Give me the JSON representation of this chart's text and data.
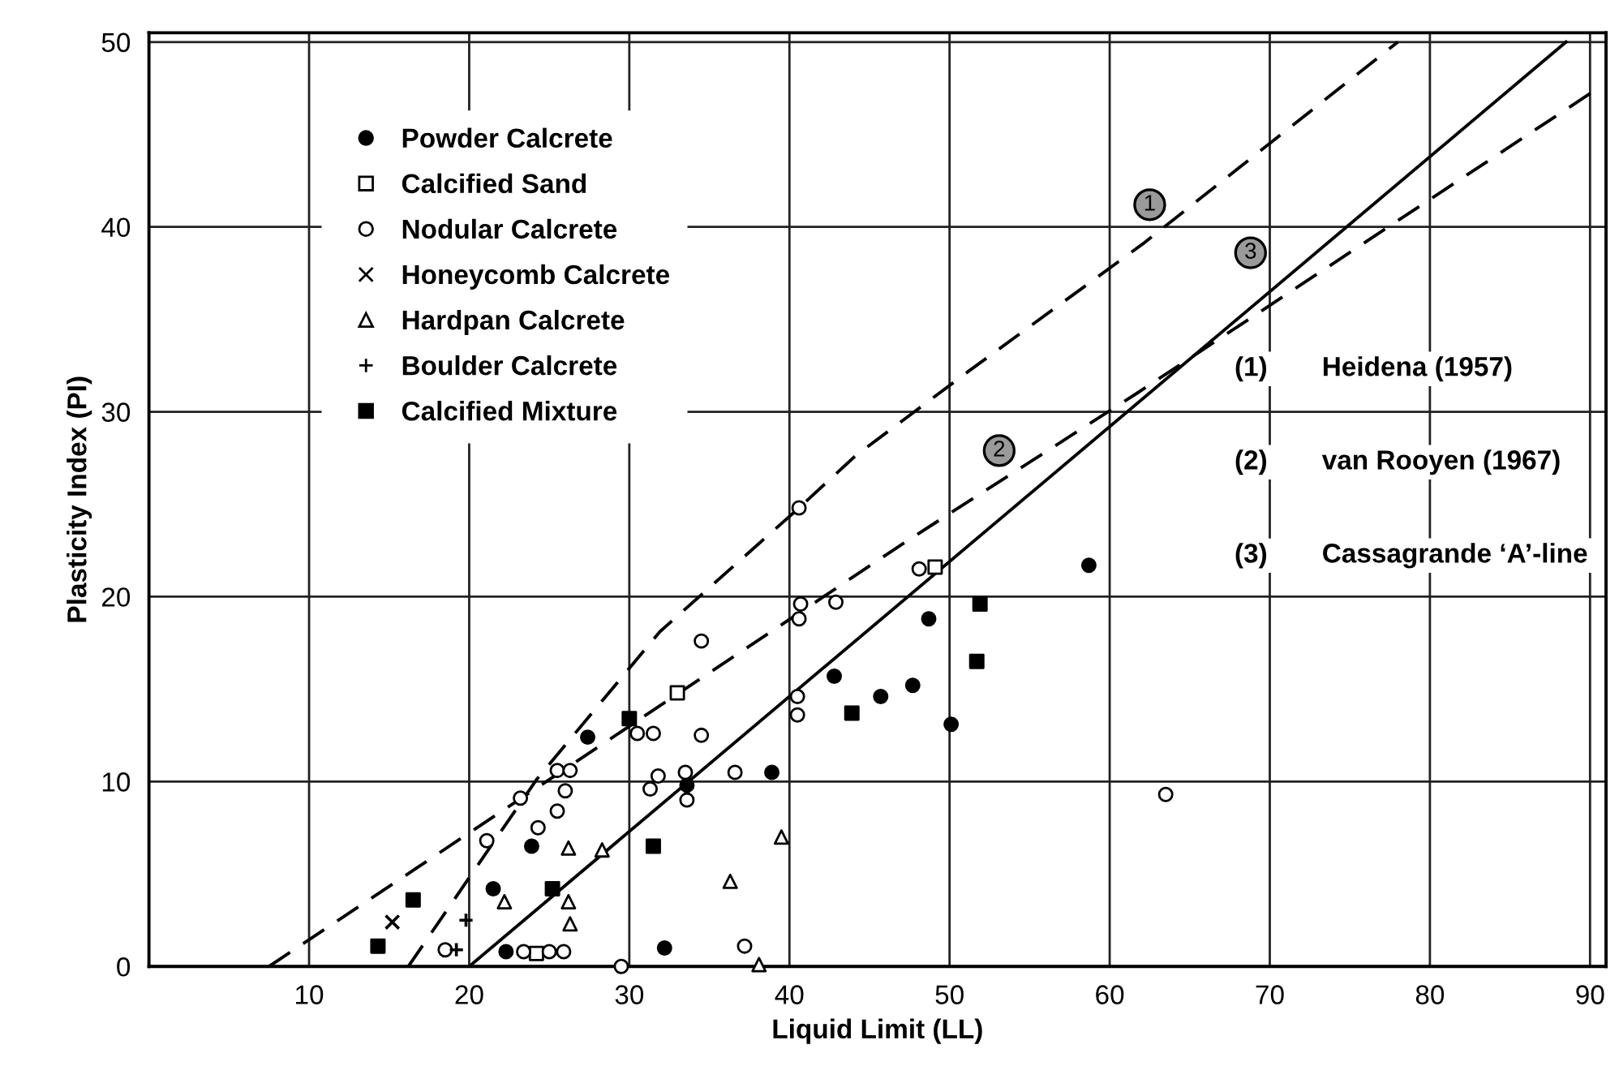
{
  "chart_data": {
    "type": "scatter",
    "xlabel": "Liquid Limit (LL)",
    "ylabel": "Plasticity Index (PI)",
    "xlim": [
      0,
      91
    ],
    "ylim": [
      0,
      50.5
    ],
    "xticks": [
      10,
      20,
      30,
      40,
      50,
      60,
      70,
      80,
      90
    ],
    "yticks": [
      0,
      10,
      20,
      30,
      40,
      50
    ],
    "grid": true,
    "legend": "top left",
    "series": [
      {
        "name": "Powder Calcrete",
        "color": "#000000",
        "marker": "circle",
        "x": [
          27.4,
          23.9,
          21.5,
          22.3,
          38.9,
          33.6,
          32.2,
          42.8,
          45.7,
          47.7,
          48.7,
          50.1,
          58.7
        ],
        "values": [
          12.4,
          6.5,
          4.2,
          0.8,
          10.5,
          9.8,
          1.0,
          15.7,
          14.6,
          15.2,
          18.8,
          13.1,
          21.7
        ]
      },
      {
        "name": "Calcified Sand",
        "color": "#000000",
        "marker": "square-open",
        "x": [
          24.2,
          33.0,
          49.1
        ],
        "values": [
          0.7,
          14.8,
          21.6
        ]
      },
      {
        "name": "Nodular Calcrete",
        "color": "#000000",
        "marker": "circle-open",
        "x": [
          21.1,
          23.2,
          25.5,
          26.3,
          26.0,
          25.5,
          24.3,
          30.5,
          31.3,
          18.5,
          23.4,
          25.0,
          25.9,
          29.5,
          40.6,
          40.7,
          40.6,
          42.9,
          48.1,
          34.5,
          31.5,
          34.5,
          40.5,
          40.5,
          31.8,
          33.5,
          36.6,
          33.6,
          37.2,
          63.5
        ],
        "values": [
          6.8,
          9.1,
          10.6,
          10.6,
          9.5,
          8.4,
          7.5,
          12.6,
          9.6,
          0.9,
          0.8,
          0.8,
          0.8,
          0.0,
          24.8,
          19.6,
          18.8,
          19.7,
          21.5,
          17.6,
          12.6,
          12.5,
          14.6,
          13.6,
          10.3,
          10.5,
          10.5,
          9.0,
          1.1,
          9.3
        ]
      },
      {
        "name": "Honeycomb Calcrete",
        "color": "#000000",
        "marker": "cross",
        "x": [
          15.2
        ],
        "values": [
          2.4
        ]
      },
      {
        "name": "Hardpan Calcrete",
        "color": "#000000",
        "marker": "triangle-open",
        "x": [
          26.2,
          28.3,
          22.2,
          26.2,
          26.3,
          39.5,
          36.3,
          38.1
        ],
        "values": [
          6.4,
          6.3,
          3.5,
          3.5,
          2.3,
          7.0,
          4.6,
          0.1
        ]
      },
      {
        "name": "Boulder Calcrete",
        "color": "#000000",
        "marker": "plus",
        "x": [
          19.8,
          19.2
        ],
        "values": [
          2.5,
          0.9
        ]
      },
      {
        "name": "Calcified Mixture",
        "color": "#000000",
        "marker": "square",
        "x": [
          14.3,
          16.5,
          25.2,
          30.0,
          31.5,
          43.9,
          51.9,
          51.7
        ],
        "values": [
          1.1,
          3.6,
          4.2,
          13.4,
          6.5,
          13.7,
          19.6,
          16.5
        ]
      },
      {
        "type": "line",
        "color": "#000000",
        "line_style": "dashed",
        "x": [
          16.2,
          24.2,
          31.9,
          40.6,
          44.1,
          51.2,
          62.1,
          78.0
        ],
        "values": [
          0,
          10.1,
          18.1,
          24.8,
          27.6,
          32.2,
          39.1,
          50.0
        ]
      },
      {
        "type": "line",
        "color": "#000000",
        "line_style": "dashed",
        "x": [
          7.5,
          47.5,
          61.7,
          90.5
        ],
        "values": [
          0,
          23.1,
          31.0,
          47.5
        ]
      },
      {
        "type": "line",
        "color": "#000000",
        "line_style": "solid",
        "x": [
          20.0,
          88.5
        ],
        "values": [
          0,
          50.0
        ]
      }
    ],
    "annotations": [
      {
        "text": "1",
        "x": 62.5,
        "y": 41.2
      },
      {
        "text": "2",
        "x": 53.1,
        "y": 27.9
      },
      {
        "text": "3",
        "x": 68.8,
        "y": 38.6
      },
      "(1) Heidena (1957)",
      "(2) van Rooyen (1967)",
      "(3) Cassagrande ‘A’-line"
    ]
  }
}
